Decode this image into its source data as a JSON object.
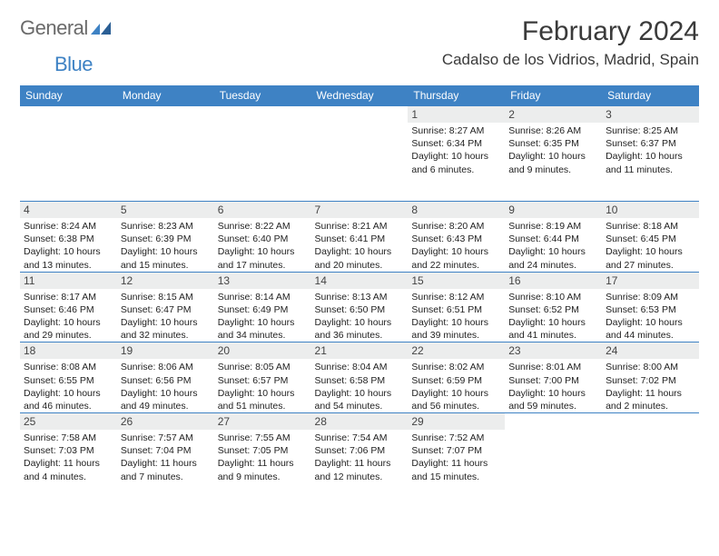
{
  "logo": {
    "text_general": "General",
    "text_blue": "Blue"
  },
  "title": "February 2024",
  "location": "Cadalso de los Vidrios, Madrid, Spain",
  "brand_color": "#3e82c4",
  "band_color": "#eceded",
  "day_headers": [
    "Sunday",
    "Monday",
    "Tuesday",
    "Wednesday",
    "Thursday",
    "Friday",
    "Saturday"
  ],
  "weeks": [
    [
      null,
      null,
      null,
      null,
      {
        "date": "1",
        "sunrise": "8:27 AM",
        "sunset": "6:34 PM",
        "daylight": "10 hours and 6 minutes."
      },
      {
        "date": "2",
        "sunrise": "8:26 AM",
        "sunset": "6:35 PM",
        "daylight": "10 hours and 9 minutes."
      },
      {
        "date": "3",
        "sunrise": "8:25 AM",
        "sunset": "6:37 PM",
        "daylight": "10 hours and 11 minutes."
      }
    ],
    [
      {
        "date": "4",
        "sunrise": "8:24 AM",
        "sunset": "6:38 PM",
        "daylight": "10 hours and 13 minutes."
      },
      {
        "date": "5",
        "sunrise": "8:23 AM",
        "sunset": "6:39 PM",
        "daylight": "10 hours and 15 minutes."
      },
      {
        "date": "6",
        "sunrise": "8:22 AM",
        "sunset": "6:40 PM",
        "daylight": "10 hours and 17 minutes."
      },
      {
        "date": "7",
        "sunrise": "8:21 AM",
        "sunset": "6:41 PM",
        "daylight": "10 hours and 20 minutes."
      },
      {
        "date": "8",
        "sunrise": "8:20 AM",
        "sunset": "6:43 PM",
        "daylight": "10 hours and 22 minutes."
      },
      {
        "date": "9",
        "sunrise": "8:19 AM",
        "sunset": "6:44 PM",
        "daylight": "10 hours and 24 minutes."
      },
      {
        "date": "10",
        "sunrise": "8:18 AM",
        "sunset": "6:45 PM",
        "daylight": "10 hours and 27 minutes."
      }
    ],
    [
      {
        "date": "11",
        "sunrise": "8:17 AM",
        "sunset": "6:46 PM",
        "daylight": "10 hours and 29 minutes."
      },
      {
        "date": "12",
        "sunrise": "8:15 AM",
        "sunset": "6:47 PM",
        "daylight": "10 hours and 32 minutes."
      },
      {
        "date": "13",
        "sunrise": "8:14 AM",
        "sunset": "6:49 PM",
        "daylight": "10 hours and 34 minutes."
      },
      {
        "date": "14",
        "sunrise": "8:13 AM",
        "sunset": "6:50 PM",
        "daylight": "10 hours and 36 minutes."
      },
      {
        "date": "15",
        "sunrise": "8:12 AM",
        "sunset": "6:51 PM",
        "daylight": "10 hours and 39 minutes."
      },
      {
        "date": "16",
        "sunrise": "8:10 AM",
        "sunset": "6:52 PM",
        "daylight": "10 hours and 41 minutes."
      },
      {
        "date": "17",
        "sunrise": "8:09 AM",
        "sunset": "6:53 PM",
        "daylight": "10 hours and 44 minutes."
      }
    ],
    [
      {
        "date": "18",
        "sunrise": "8:08 AM",
        "sunset": "6:55 PM",
        "daylight": "10 hours and 46 minutes."
      },
      {
        "date": "19",
        "sunrise": "8:06 AM",
        "sunset": "6:56 PM",
        "daylight": "10 hours and 49 minutes."
      },
      {
        "date": "20",
        "sunrise": "8:05 AM",
        "sunset": "6:57 PM",
        "daylight": "10 hours and 51 minutes."
      },
      {
        "date": "21",
        "sunrise": "8:04 AM",
        "sunset": "6:58 PM",
        "daylight": "10 hours and 54 minutes."
      },
      {
        "date": "22",
        "sunrise": "8:02 AM",
        "sunset": "6:59 PM",
        "daylight": "10 hours and 56 minutes."
      },
      {
        "date": "23",
        "sunrise": "8:01 AM",
        "sunset": "7:00 PM",
        "daylight": "10 hours and 59 minutes."
      },
      {
        "date": "24",
        "sunrise": "8:00 AM",
        "sunset": "7:02 PM",
        "daylight": "11 hours and 2 minutes."
      }
    ],
    [
      {
        "date": "25",
        "sunrise": "7:58 AM",
        "sunset": "7:03 PM",
        "daylight": "11 hours and 4 minutes."
      },
      {
        "date": "26",
        "sunrise": "7:57 AM",
        "sunset": "7:04 PM",
        "daylight": "11 hours and 7 minutes."
      },
      {
        "date": "27",
        "sunrise": "7:55 AM",
        "sunset": "7:05 PM",
        "daylight": "11 hours and 9 minutes."
      },
      {
        "date": "28",
        "sunrise": "7:54 AM",
        "sunset": "7:06 PM",
        "daylight": "11 hours and 12 minutes."
      },
      {
        "date": "29",
        "sunrise": "7:52 AM",
        "sunset": "7:07 PM",
        "daylight": "11 hours and 15 minutes."
      },
      null,
      null
    ]
  ],
  "labels": {
    "sunrise": "Sunrise:",
    "sunset": "Sunset:",
    "daylight": "Daylight:"
  }
}
